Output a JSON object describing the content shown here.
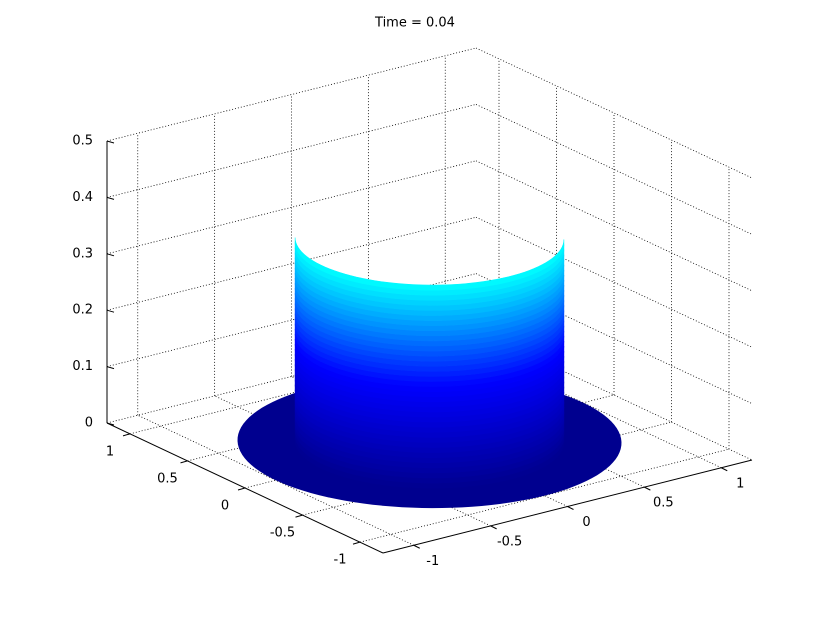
{
  "chart_data": {
    "type": "surface3d",
    "title": "Time = 0.04",
    "xlim": [
      -1.2,
      1.2
    ],
    "ylim": [
      -1.2,
      1.2
    ],
    "zlim": [
      0,
      0.5
    ],
    "xticks": [
      -1,
      -0.5,
      0,
      0.5,
      1
    ],
    "yticks": [
      -1,
      -0.5,
      0,
      0.5,
      1
    ],
    "zticks": [
      0,
      0.1,
      0.2,
      0.3,
      0.4,
      0.5
    ],
    "grid": true,
    "surface": {
      "disc_radius": 1,
      "cylinder_radius": 0.7,
      "height": 0.36,
      "base_color": "#00008f",
      "colormap": [
        "#00008f",
        "#0000ff",
        "#00ffff"
      ]
    }
  }
}
